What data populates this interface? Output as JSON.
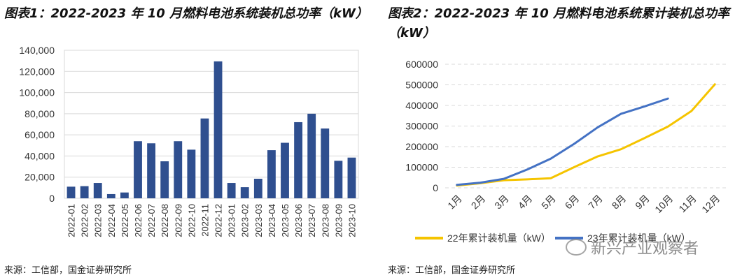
{
  "chart_data": [
    {
      "type": "bar",
      "title": "图表1：2022-2023 年 10 月燃料电池系统装机总功率（kW）",
      "xlabel": "",
      "ylabel": "",
      "ylim": [
        0,
        140000
      ],
      "yticks": [
        "0",
        "20,000",
        "40,000",
        "60,000",
        "80,000",
        "100,000",
        "120,000",
        "140,000"
      ],
      "categories": [
        "2022-01",
        "2022-02",
        "2022-03",
        "2022-04",
        "2022-05",
        "2022-06",
        "2022-07",
        "2022-08",
        "2022-09",
        "2022-10",
        "2022-11",
        "2022-12",
        "2023-01",
        "2023-02",
        "2023-03",
        "2023-04",
        "2023-05",
        "2023-06",
        "2023-07",
        "2023-08",
        "2023-09",
        "2023-10"
      ],
      "values": [
        11000,
        11500,
        14500,
        4000,
        5500,
        54000,
        52000,
        35000,
        54000,
        46000,
        75500,
        129500,
        14500,
        10500,
        18500,
        45500,
        52500,
        72000,
        80000,
        66000,
        35500,
        38500
      ],
      "color": "#2f4f8f",
      "grid": true
    },
    {
      "type": "line",
      "title": "图表2：2022-2023 年 10 月燃料电池系统累计装机总功率（kW）",
      "xlabel": "",
      "ylabel": "",
      "ylim": [
        0,
        600000
      ],
      "yticks": [
        "0",
        "100000",
        "200000",
        "300000",
        "400000",
        "500000",
        "600000"
      ],
      "categories": [
        "1月",
        "2月",
        "3月",
        "4月",
        "5月",
        "6月",
        "7月",
        "8月",
        "9月",
        "10月",
        "11月",
        "12月"
      ],
      "series": [
        {
          "name": "22年累计装机量（kW）",
          "color": "#f5c400",
          "values": [
            11000,
            22500,
            37000,
            41000,
            46500,
            100500,
            152500,
            187500,
            241500,
            297500,
            373000,
            502500
          ]
        },
        {
          "name": "23年累计装机量（kW）",
          "color": "#4472c4",
          "values": [
            14500,
            25000,
            43500,
            89000,
            141500,
            213500,
            293500,
            359500,
            395000,
            433500,
            null,
            null
          ]
        }
      ],
      "legend": "bottom",
      "grid": true
    }
  ],
  "source": "来源：工信部，国金证券研究所",
  "watermark": "新兴产业观察者"
}
